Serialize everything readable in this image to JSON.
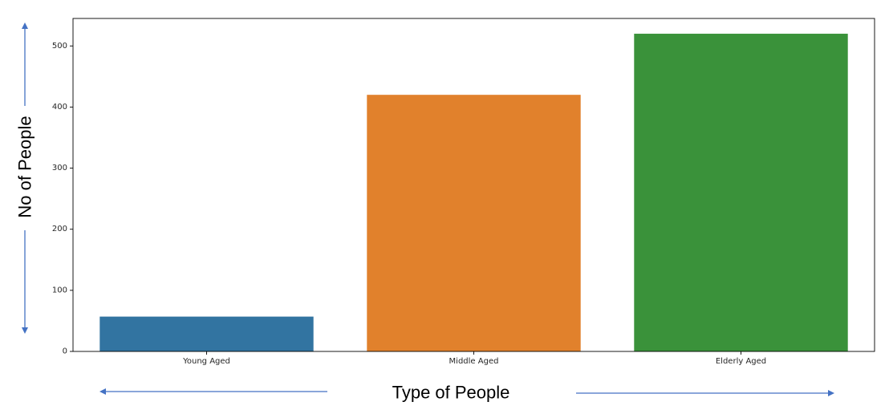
{
  "chart_data": {
    "type": "bar",
    "categories": [
      "Young Aged",
      "Middle Aged",
      "Elderly Aged"
    ],
    "values": [
      57,
      420,
      520
    ],
    "colors": [
      "#3274a1",
      "#e1812c",
      "#3a923a"
    ],
    "xlabel": "Type of People",
    "ylabel": "No of People",
    "ylim": [
      0,
      545
    ],
    "yticks": [
      0,
      100,
      200,
      300,
      400,
      500
    ],
    "grid": false,
    "arrow_color": "#4472c4"
  }
}
